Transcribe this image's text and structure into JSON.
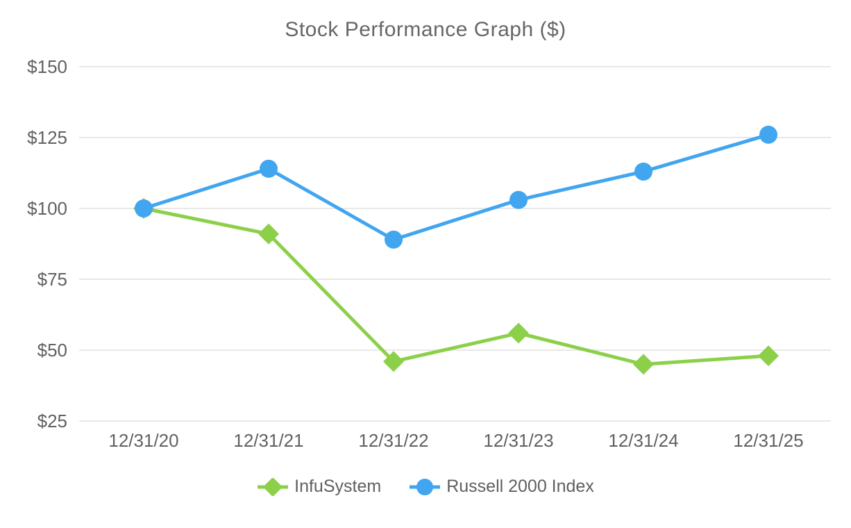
{
  "chart_data": {
    "type": "line",
    "title": "Stock Performance Graph ($)",
    "categories": [
      "12/31/20",
      "12/31/21",
      "12/31/22",
      "12/31/23",
      "12/31/24",
      "12/31/25"
    ],
    "series": [
      {
        "name": "InfuSystem",
        "color": "#8CD04A",
        "marker": "diamond",
        "values": [
          100,
          91,
          46,
          56,
          45,
          48
        ]
      },
      {
        "name": "Russell 2000 Index",
        "color": "#42A5F0",
        "marker": "circle",
        "values": [
          100,
          114,
          89,
          103,
          113,
          126
        ]
      }
    ],
    "xlabel": "",
    "ylabel": "",
    "ylim": [
      25,
      150
    ],
    "y_ticks": [
      150,
      125,
      100,
      75,
      50,
      25
    ],
    "y_tick_labels": [
      "$150",
      "$125",
      "$100",
      "$75",
      "$50",
      "$25"
    ],
    "grid": true,
    "legend_position": "bottom",
    "colors": {
      "text": "#616161",
      "grid": "#e8e8e8",
      "background": "#ffffff"
    }
  }
}
